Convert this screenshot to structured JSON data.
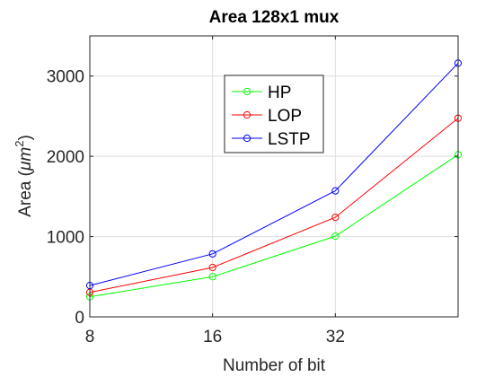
{
  "chart_data": {
    "type": "line",
    "title": "Area 128x1 mux",
    "xlabel": "Number of bit",
    "ylabel_prefix": "Area (",
    "ylabel_unit_greek": "μm",
    "ylabel_sup": "2",
    "ylabel_suffix": ")",
    "x": [
      8,
      16,
      32,
      64
    ],
    "xticks": [
      8,
      16,
      32
    ],
    "xlim": [
      8,
      64
    ],
    "x_scale": "log2",
    "yticks": [
      0,
      1000,
      2000,
      3000
    ],
    "ylim": [
      0,
      3500
    ],
    "grid": true,
    "legend_position": "upper-center",
    "series": [
      {
        "name": "HP",
        "color": "#00ff00",
        "values": [
          250,
          500,
          1005,
          2020
        ]
      },
      {
        "name": "LOP",
        "color": "#ff0000",
        "values": [
          305,
          615,
          1240,
          2475
        ]
      },
      {
        "name": "LSTP",
        "color": "#0000ff",
        "values": [
          390,
          785,
          1570,
          3160
        ]
      }
    ]
  }
}
